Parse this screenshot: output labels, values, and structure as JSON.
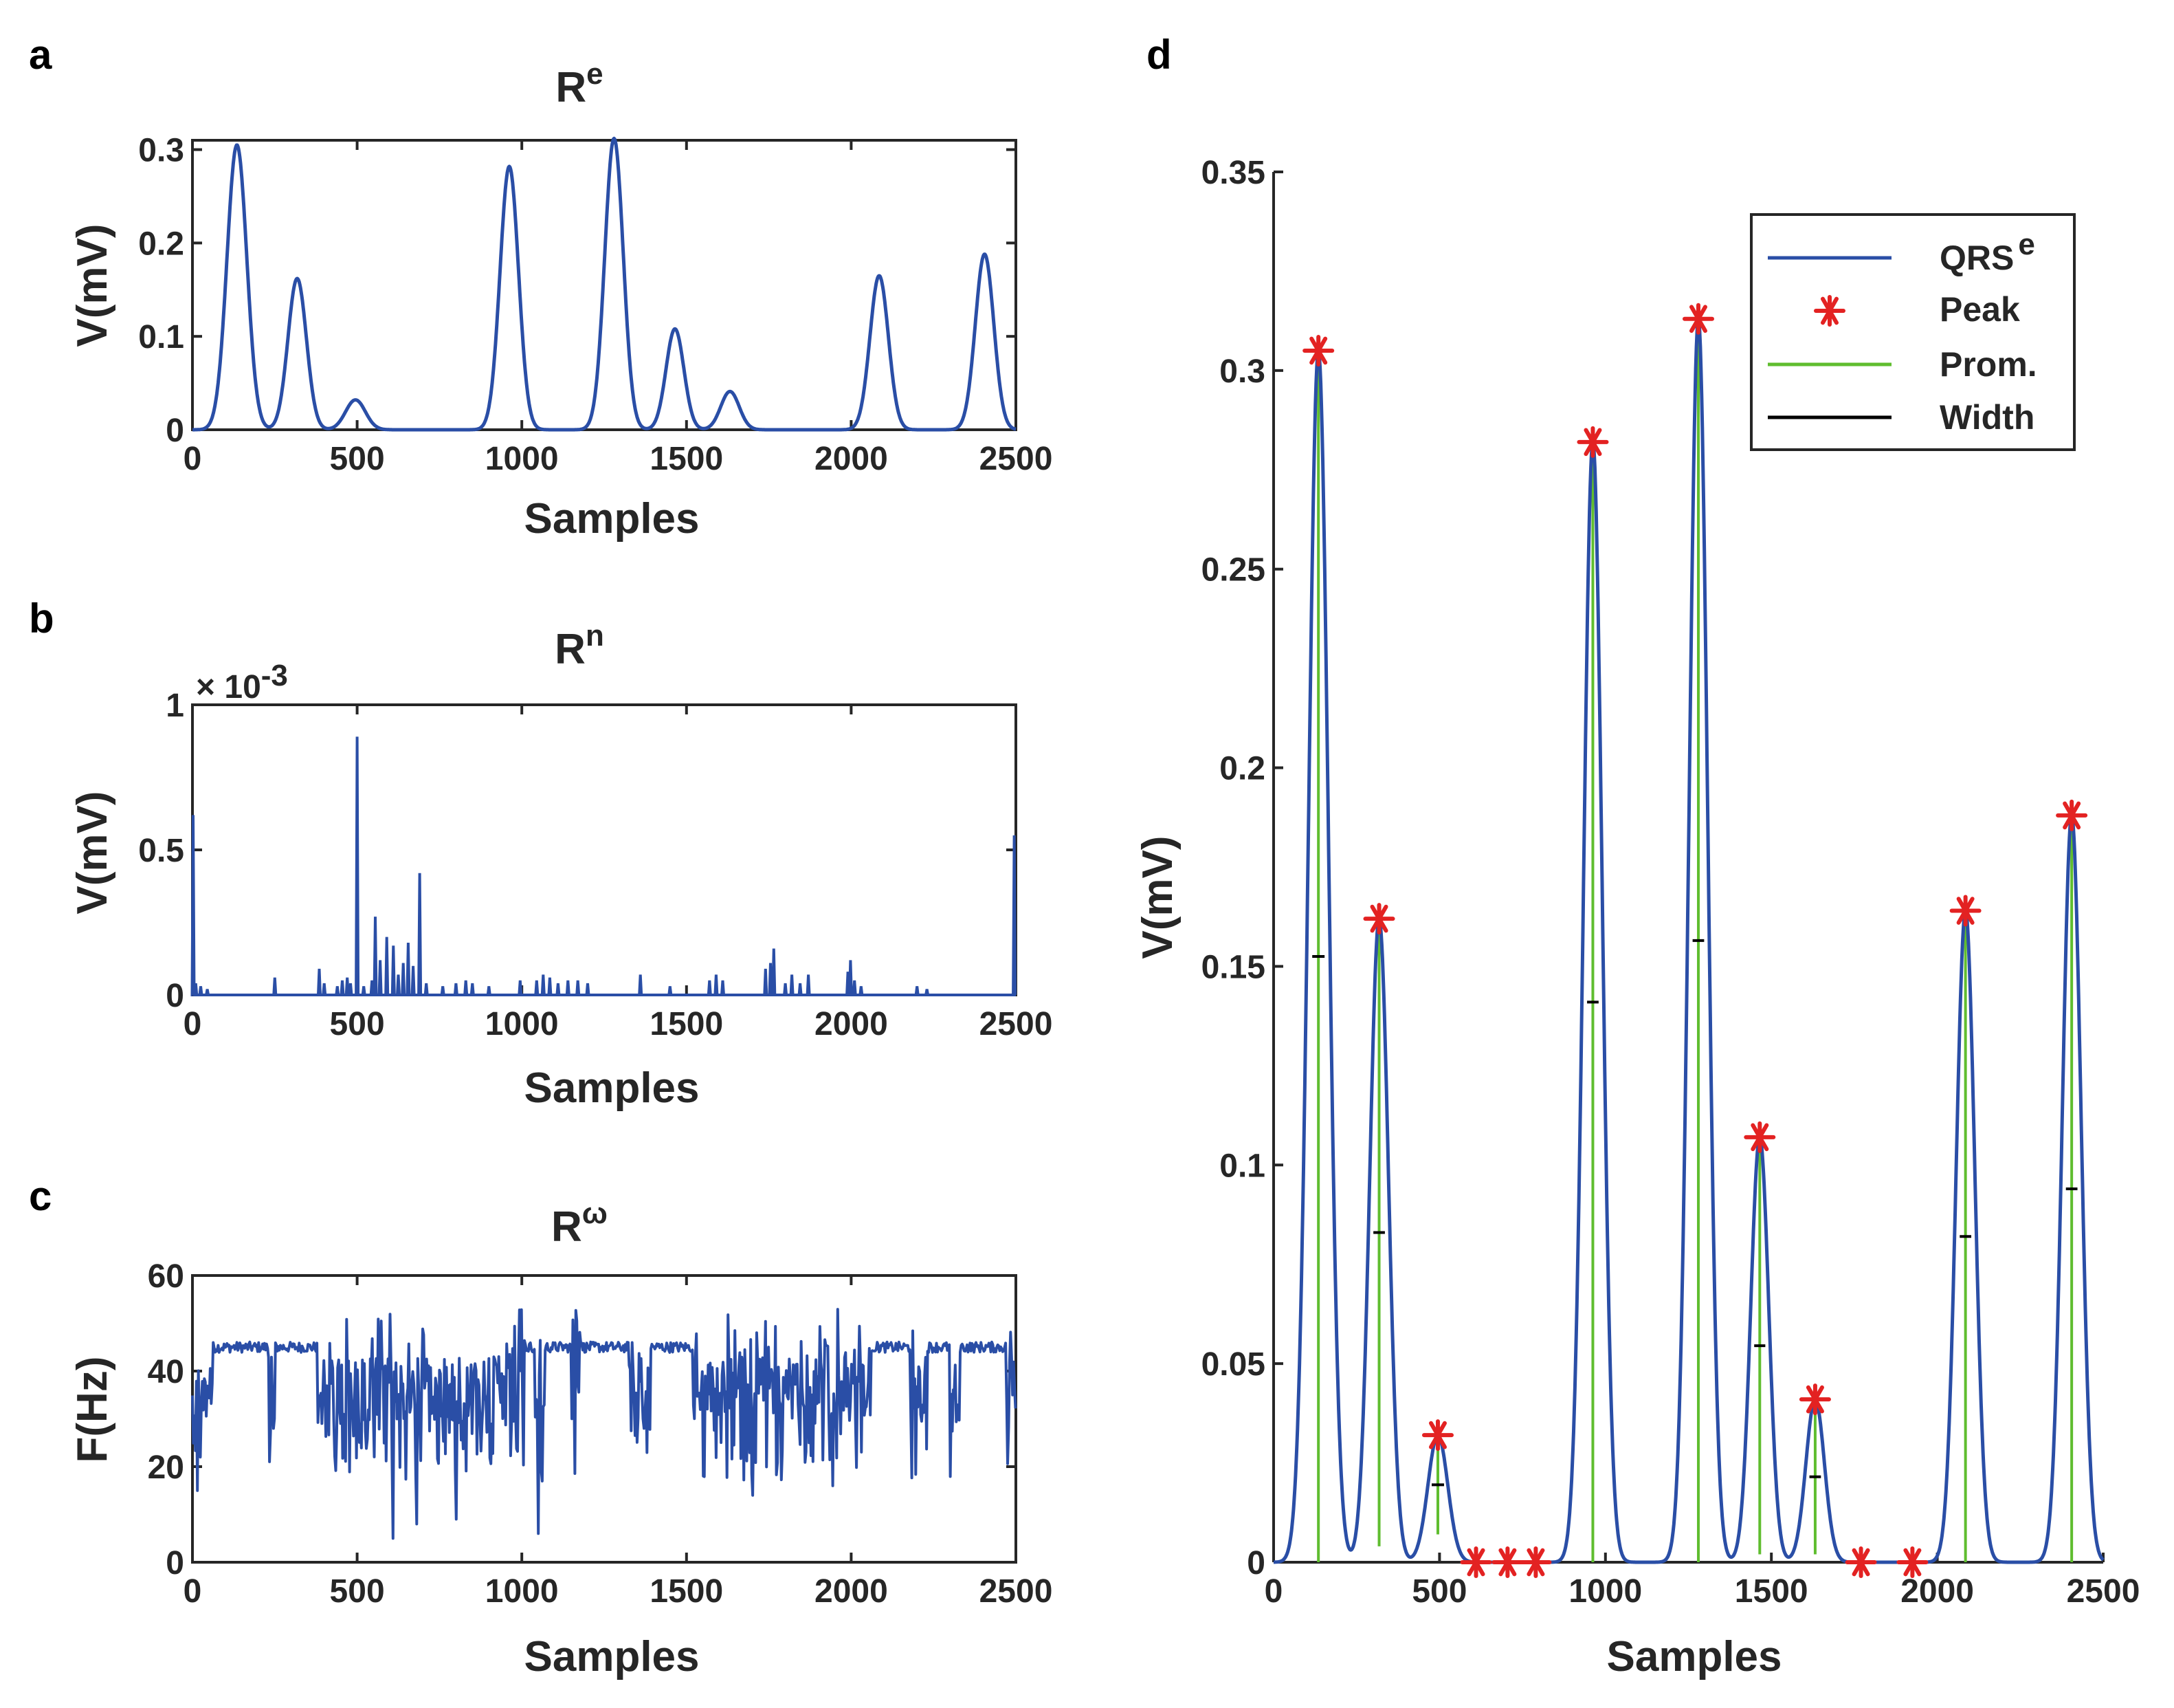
{
  "colors": {
    "signal": "#2a4ea6",
    "peak": "#e32222",
    "prominence": "#5fbd2f",
    "width": "#000000",
    "axes": "#262626"
  },
  "chart_data": [
    {
      "panel": "a",
      "type": "line",
      "title": "R",
      "title_sup": "e",
      "xlabel": "Samples",
      "ylabel": "V(mV)",
      "xlim": [
        0,
        2500
      ],
      "ylim": [
        0,
        0.31
      ],
      "xticks": [
        0,
        500,
        1000,
        1500,
        2000,
        2500
      ],
      "xtick_labels": [
        "0",
        "500",
        "1000",
        "1500",
        "2000",
        "2500"
      ],
      "yticks": [
        0,
        0.1,
        0.2,
        0.3
      ],
      "ytick_labels": [
        "0",
        "0.1",
        "0.2",
        "0.3"
      ],
      "pulses": [
        {
          "center": 135,
          "height": 0.305,
          "sigma": 30
        },
        {
          "center": 318,
          "height": 0.162,
          "sigma": 28
        },
        {
          "center": 495,
          "height": 0.032,
          "sigma": 30
        },
        {
          "center": 962,
          "height": 0.282,
          "sigma": 28
        },
        {
          "center": 1280,
          "height": 0.312,
          "sigma": 28
        },
        {
          "center": 1465,
          "height": 0.108,
          "sigma": 27
        },
        {
          "center": 1632,
          "height": 0.041,
          "sigma": 28
        },
        {
          "center": 2085,
          "height": 0.165,
          "sigma": 28
        },
        {
          "center": 2405,
          "height": 0.188,
          "sigma": 28
        }
      ]
    },
    {
      "panel": "b",
      "type": "line",
      "title": "R",
      "title_sup": "n",
      "xlabel": "Samples",
      "ylabel": "V(mV)",
      "exponent_label": "× 10",
      "exponent_power": "-3",
      "xlim": [
        0,
        2500
      ],
      "ylim": [
        0,
        1
      ],
      "xticks": [
        0,
        500,
        1000,
        1500,
        2000,
        2500
      ],
      "xtick_labels": [
        "0",
        "500",
        "1000",
        "1500",
        "2000",
        "2500"
      ],
      "yticks": [
        0,
        0.5,
        1
      ],
      "ytick_labels": [
        "0",
        "0.5",
        "1"
      ],
      "spikes": [
        [
          2,
          0.62
        ],
        [
          10,
          0.04
        ],
        [
          25,
          0.03
        ],
        [
          45,
          0.02
        ],
        [
          250,
          0.06
        ],
        [
          385,
          0.09
        ],
        [
          400,
          0.04
        ],
        [
          440,
          0.03
        ],
        [
          455,
          0.05
        ],
        [
          470,
          0.06
        ],
        [
          480,
          0.04
        ],
        [
          500,
          0.89
        ],
        [
          520,
          0.03
        ],
        [
          545,
          0.05
        ],
        [
          555,
          0.27
        ],
        [
          570,
          0.12
        ],
        [
          590,
          0.2
        ],
        [
          610,
          0.17
        ],
        [
          625,
          0.07
        ],
        [
          640,
          0.11
        ],
        [
          655,
          0.18
        ],
        [
          670,
          0.1
        ],
        [
          690,
          0.42
        ],
        [
          710,
          0.04
        ],
        [
          760,
          0.03
        ],
        [
          800,
          0.04
        ],
        [
          830,
          0.05
        ],
        [
          850,
          0.04
        ],
        [
          900,
          0.03
        ],
        [
          995,
          0.05
        ],
        [
          1045,
          0.05
        ],
        [
          1065,
          0.07
        ],
        [
          1085,
          0.06
        ],
        [
          1110,
          0.04
        ],
        [
          1140,
          0.05
        ],
        [
          1170,
          0.05
        ],
        [
          1200,
          0.04
        ],
        [
          1360,
          0.07
        ],
        [
          1450,
          0.03
        ],
        [
          1570,
          0.05
        ],
        [
          1590,
          0.07
        ],
        [
          1610,
          0.05
        ],
        [
          1740,
          0.09
        ],
        [
          1755,
          0.11
        ],
        [
          1765,
          0.16
        ],
        [
          1800,
          0.04
        ],
        [
          1820,
          0.07
        ],
        [
          1845,
          0.04
        ],
        [
          1870,
          0.07
        ],
        [
          1990,
          0.08
        ],
        [
          1998,
          0.12
        ],
        [
          2010,
          0.05
        ],
        [
          2030,
          0.03
        ],
        [
          2200,
          0.03
        ],
        [
          2230,
          0.02
        ],
        [
          2495,
          0.55
        ]
      ]
    },
    {
      "panel": "c",
      "type": "line",
      "title": "R",
      "title_sup": "ω",
      "xlabel": "Samples",
      "ylabel": "F(Hz)",
      "xlim": [
        0,
        2500
      ],
      "ylim": [
        0,
        60
      ],
      "xticks": [
        0,
        500,
        1000,
        1500,
        2000,
        2500
      ],
      "xtick_labels": [
        "0",
        "500",
        "1000",
        "1500",
        "2000",
        "2500"
      ],
      "yticks": [
        0,
        20,
        40,
        60
      ],
      "ytick_labels": [
        "0",
        "20",
        "40",
        "60"
      ],
      "baseline": 45,
      "noisy_regions": [
        [
          0,
          60
        ],
        [
          230,
          250
        ],
        [
          380,
          1010
        ],
        [
          1040,
          1070
        ],
        [
          1150,
          1180
        ],
        [
          1325,
          1390
        ],
        [
          1520,
          1920
        ],
        [
          1930,
          2060
        ],
        [
          2180,
          2230
        ],
        [
          2300,
          2330
        ],
        [
          2470,
          2500
        ]
      ],
      "dips": [
        [
          15,
          15
        ],
        [
          25,
          22
        ],
        [
          245,
          28
        ],
        [
          610,
          5
        ],
        [
          680,
          8
        ],
        [
          800,
          9
        ],
        [
          1050,
          6
        ],
        [
          1370,
          28
        ],
        [
          1700,
          14
        ],
        [
          1945,
          16
        ],
        [
          2490,
          35
        ]
      ]
    },
    {
      "panel": "d",
      "type": "line",
      "title": "",
      "xlabel": "Samples",
      "ylabel": "V(mV)",
      "xlim": [
        0,
        2500
      ],
      "ylim": [
        0,
        0.35
      ],
      "xticks": [
        0,
        500,
        1000,
        1500,
        2000,
        2500
      ],
      "xtick_labels": [
        "0",
        "500",
        "1000",
        "1500",
        "2000",
        "2500"
      ],
      "yticks": [
        0,
        0.05,
        0.1,
        0.15,
        0.2,
        0.25,
        0.3,
        0.35
      ],
      "ytick_labels": [
        "0",
        "0.05",
        "0.1",
        "0.15",
        "0.2",
        "0.25",
        "0.3",
        "0.35"
      ],
      "legend_position": "top-right",
      "legend": [
        {
          "label": "QRS",
          "sup": "e",
          "kind": "line",
          "color": "#2a4ea6"
        },
        {
          "label": "Peak",
          "sup": "",
          "kind": "marker",
          "color": "#e32222"
        },
        {
          "label": "Prom.",
          "sup": "",
          "kind": "line",
          "color": "#5fbd2f"
        },
        {
          "label": "Width",
          "sup": "",
          "kind": "line",
          "color": "#000000"
        }
      ],
      "peaks": [
        {
          "x": 135,
          "y": 0.305,
          "prominence_base": 0.0,
          "half_width_y": 0.1525
        },
        {
          "x": 318,
          "y": 0.162,
          "prominence_base": 0.004,
          "half_width_y": 0.083
        },
        {
          "x": 495,
          "y": 0.032,
          "prominence_base": 0.007,
          "half_width_y": 0.0195
        },
        {
          "x": 962,
          "y": 0.282,
          "prominence_base": 0.0,
          "half_width_y": 0.141
        },
        {
          "x": 1280,
          "y": 0.313,
          "prominence_base": 0.0,
          "half_width_y": 0.1565
        },
        {
          "x": 1465,
          "y": 0.107,
          "prominence_base": 0.002,
          "half_width_y": 0.0545
        },
        {
          "x": 1632,
          "y": 0.041,
          "prominence_base": 0.002,
          "half_width_y": 0.0215
        },
        {
          "x": 2085,
          "y": 0.164,
          "prominence_base": 0.0,
          "half_width_y": 0.082
        },
        {
          "x": 2405,
          "y": 0.188,
          "prominence_base": 0.0,
          "half_width_y": 0.094
        }
      ],
      "flat_peaks": [
        {
          "x": 610,
          "y": 0
        },
        {
          "x": 705,
          "y": 0
        },
        {
          "x": 790,
          "y": 0
        },
        {
          "x": 1770,
          "y": 0
        },
        {
          "x": 1925,
          "y": 0
        }
      ]
    }
  ]
}
